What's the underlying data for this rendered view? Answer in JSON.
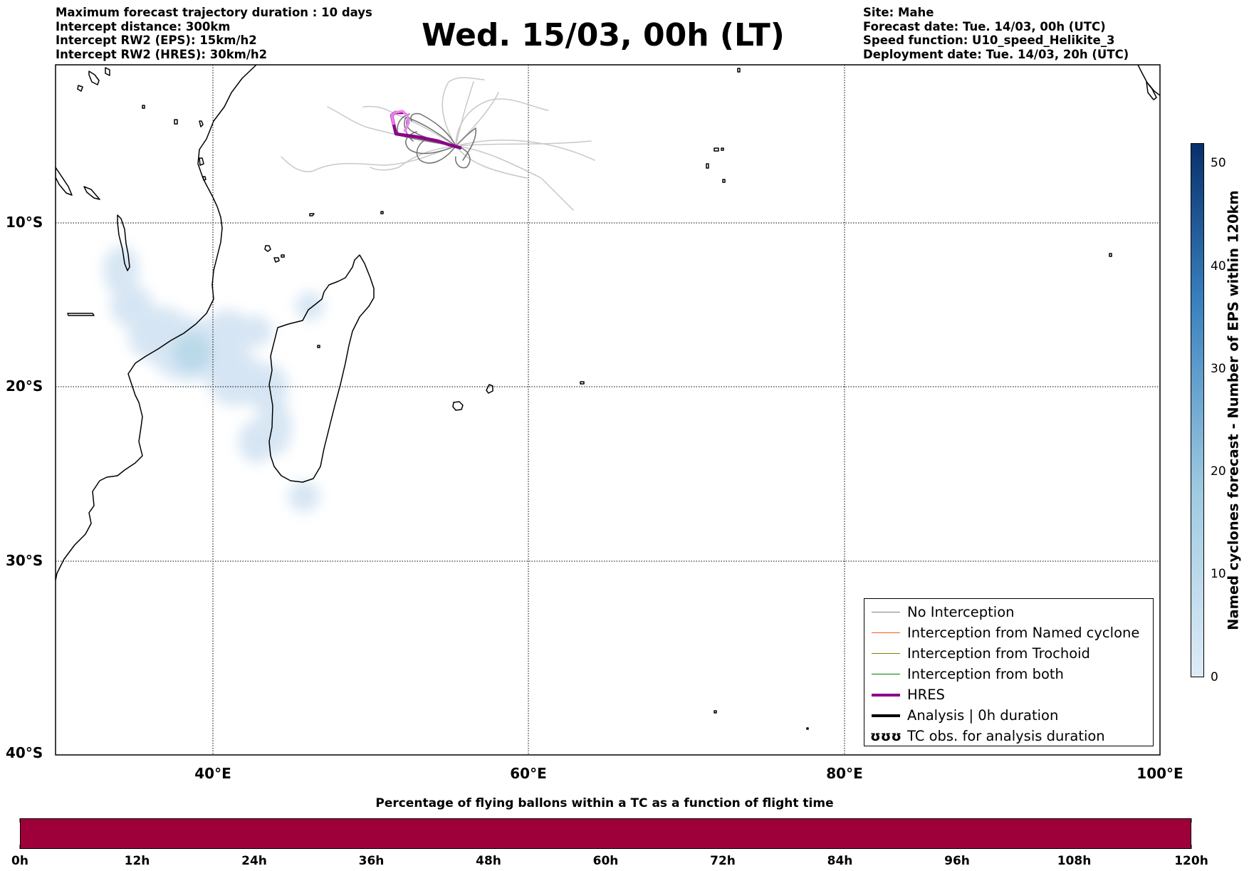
{
  "header_left": {
    "line1": "Maximum forecast trajectory duration : 10 days",
    "line2": "Intercept distance: 300km",
    "line3": "Intercept RW2 (EPS):  15km/h2",
    "line4": "Intercept RW2 (HRES): 30km/h2"
  },
  "title": "Wed. 15/03, 00h (LT)",
  "header_right": {
    "line1": "Site: Mahe",
    "line2": "Forecast date: Tue. 14/03, 00h (UTC)",
    "line3": "Speed function: U10_speed_Helikite_3",
    "line4": "Deployment date: Tue. 14/03, 20h (UTC)"
  },
  "map": {
    "lon_range": [
      30,
      100
    ],
    "lat_range": [
      -40,
      0
    ],
    "lat_labels": [
      "10°S",
      "20°S",
      "30°S",
      "40°S"
    ],
    "lon_labels": [
      "40°E",
      "60°E",
      "80°E",
      "100°E"
    ],
    "grid": true,
    "site": "Mahe"
  },
  "legend": {
    "placement": "lower-right",
    "items": [
      {
        "label": "No Interception",
        "color": "#808080",
        "style": "thin"
      },
      {
        "label": "Interception from Named cyclone",
        "color": "#ff5a1f",
        "style": "thin"
      },
      {
        "label": "Interception from Trochoid",
        "color": "#808000",
        "style": "thin"
      },
      {
        "label": "Interception from both",
        "color": "#008000",
        "style": "thin"
      },
      {
        "label": "HRES",
        "color": "#8b008b",
        "style": "thick"
      },
      {
        "label": "Analysis | 0h duration",
        "color": "#000000",
        "style": "thick"
      },
      {
        "label": "TC obs. for analysis duration",
        "color": "#000000",
        "style": "symbol",
        "symbol": "ʊʊʊ"
      }
    ]
  },
  "colorbar_vertical": {
    "label": "Named cyclones forecast - Number of EPS within 120km",
    "min": 0,
    "max": 52,
    "ticks": [
      "0",
      "10",
      "20",
      "30",
      "40",
      "50"
    ],
    "color_low": "#deebf7",
    "color_high": "#08306b"
  },
  "colorbar_bottom": {
    "title": "Percentage of flying ballons within a TC as a function of flight time",
    "color": "#9e003a",
    "labels": [
      "0h",
      "12h",
      "24h",
      "36h",
      "48h",
      "60h",
      "72h",
      "84h",
      "96h",
      "108h",
      "120h"
    ]
  }
}
